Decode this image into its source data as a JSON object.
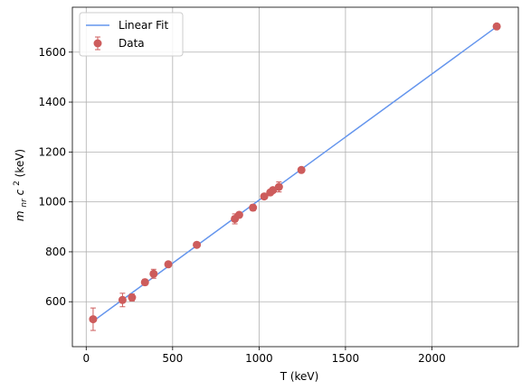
{
  "chart_data": {
    "type": "scatter",
    "xlabel": "T (keV)",
    "ylabel_main": "m",
    "ylabel_sub": "nr",
    "ylabel_mid": "c",
    "ylabel_sup": "2",
    "ylabel_unit": " (keV)",
    "xlim": [
      -80,
      2500
    ],
    "ylim": [
      420,
      1780
    ],
    "xticks": [
      0,
      500,
      1000,
      1500,
      2000
    ],
    "yticks": [
      600,
      800,
      1000,
      1200,
      1400,
      1600
    ],
    "grid": true,
    "legend_position": "top-left",
    "colors": {
      "fit": "#6495ed",
      "data": "#cd5c5c"
    },
    "series": [
      {
        "name": "Data",
        "kind": "errorbar",
        "x": [
          40,
          210,
          265,
          340,
          390,
          475,
          640,
          860,
          885,
          965,
          1030,
          1065,
          1080,
          1115,
          1245,
          2375
        ],
        "y": [
          530,
          607,
          617,
          678,
          712,
          750,
          828,
          932,
          948,
          977,
          1022,
          1038,
          1047,
          1060,
          1128,
          1703
        ],
        "yerr": [
          45,
          27,
          14,
          12,
          18,
          10,
          9,
          20,
          10,
          12,
          10,
          10,
          10,
          20,
          10,
          8
        ]
      },
      {
        "name": "Linear Fit",
        "kind": "line",
        "x": [
          40,
          2375
        ],
        "y": [
          522,
          1702
        ]
      }
    ]
  }
}
